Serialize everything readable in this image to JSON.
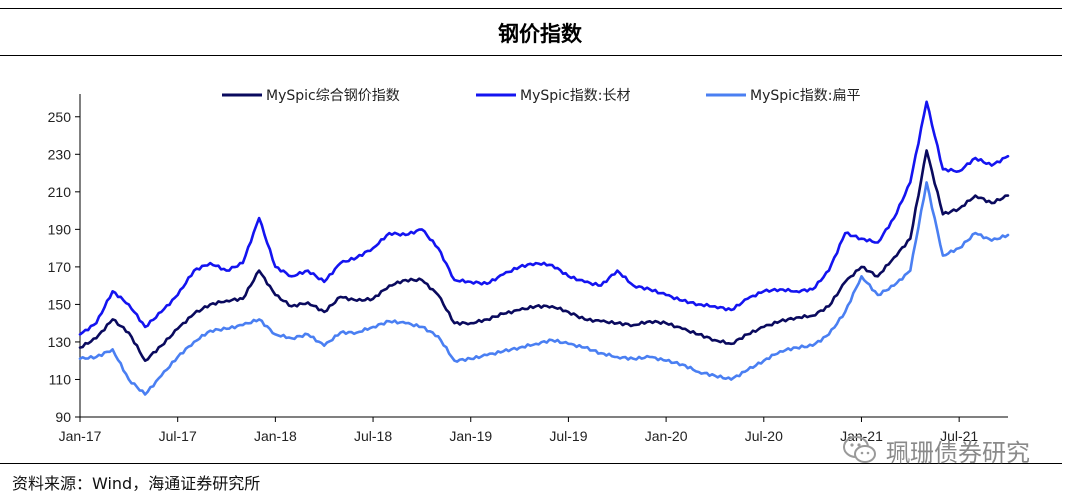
{
  "header": {
    "title": "钢价指数"
  },
  "footer": {
    "source": "资料来源：Wind，海通证券研究所"
  },
  "watermark": {
    "text": "珮珊债券研究",
    "icon": "wechat-icon"
  },
  "chart_data": {
    "type": "line",
    "title": "",
    "xlabel": "",
    "ylabel": "",
    "ylim": [
      90,
      260
    ],
    "yticks": [
      90,
      110,
      130,
      150,
      170,
      190,
      210,
      230,
      250
    ],
    "xticks": [
      "Jan-17",
      "Jul-17",
      "Jan-18",
      "Jul-18",
      "Jan-19",
      "Jul-19",
      "Jan-20",
      "Jul-20",
      "Jan-21",
      "Jul-21"
    ],
    "xlim": [
      "2017-01",
      "2021-10"
    ],
    "legend_position": "top",
    "grid": false,
    "series": [
      {
        "name": "MySpic综合钢价指数",
        "color": "#0a0a5e",
        "points": [
          [
            "2017-01",
            127
          ],
          [
            "2017-02",
            132
          ],
          [
            "2017-03",
            142
          ],
          [
            "2017-04",
            135
          ],
          [
            "2017-05",
            120
          ],
          [
            "2017-06",
            128
          ],
          [
            "2017-07",
            137
          ],
          [
            "2017-08",
            145
          ],
          [
            "2017-09",
            150
          ],
          [
            "2017-10",
            152
          ],
          [
            "2017-11",
            153
          ],
          [
            "2017-12",
            168
          ],
          [
            "2018-01",
            155
          ],
          [
            "2018-02",
            149
          ],
          [
            "2018-03",
            151
          ],
          [
            "2018-04",
            146
          ],
          [
            "2018-05",
            154
          ],
          [
            "2018-06",
            152
          ],
          [
            "2018-07",
            153
          ],
          [
            "2018-08",
            160
          ],
          [
            "2018-09",
            163
          ],
          [
            "2018-10",
            163
          ],
          [
            "2018-11",
            155
          ],
          [
            "2018-12",
            140
          ],
          [
            "2019-01",
            140
          ],
          [
            "2019-02",
            142
          ],
          [
            "2019-03",
            145
          ],
          [
            "2019-04",
            147
          ],
          [
            "2019-05",
            149
          ],
          [
            "2019-06",
            149
          ],
          [
            "2019-07",
            146
          ],
          [
            "2019-08",
            142
          ],
          [
            "2019-09",
            141
          ],
          [
            "2019-10",
            140
          ],
          [
            "2019-11",
            139
          ],
          [
            "2019-12",
            141
          ],
          [
            "2020-01",
            140
          ],
          [
            "2020-02",
            137
          ],
          [
            "2020-03",
            134
          ],
          [
            "2020-04",
            131
          ],
          [
            "2020-05",
            129
          ],
          [
            "2020-06",
            134
          ],
          [
            "2020-07",
            138
          ],
          [
            "2020-08",
            141
          ],
          [
            "2020-09",
            143
          ],
          [
            "2020-10",
            144
          ],
          [
            "2020-11",
            149
          ],
          [
            "2020-12",
            162
          ],
          [
            "2021-01",
            170
          ],
          [
            "2021-02",
            165
          ],
          [
            "2021-03",
            175
          ],
          [
            "2021-04",
            185
          ],
          [
            "2021-05",
            232
          ],
          [
            "2021-06",
            198
          ],
          [
            "2021-07",
            201
          ],
          [
            "2021-08",
            208
          ],
          [
            "2021-09",
            204
          ],
          [
            "2021-10",
            208
          ]
        ]
      },
      {
        "name": "MySpic指数:长材",
        "color": "#1414f0",
        "points": [
          [
            "2017-01",
            134
          ],
          [
            "2017-02",
            140
          ],
          [
            "2017-03",
            157
          ],
          [
            "2017-04",
            150
          ],
          [
            "2017-05",
            138
          ],
          [
            "2017-06",
            146
          ],
          [
            "2017-07",
            155
          ],
          [
            "2017-08",
            168
          ],
          [
            "2017-09",
            172
          ],
          [
            "2017-10",
            168
          ],
          [
            "2017-11",
            172
          ],
          [
            "2017-12",
            196
          ],
          [
            "2018-01",
            170
          ],
          [
            "2018-02",
            165
          ],
          [
            "2018-03",
            168
          ],
          [
            "2018-04",
            162
          ],
          [
            "2018-05",
            172
          ],
          [
            "2018-06",
            175
          ],
          [
            "2018-07",
            180
          ],
          [
            "2018-08",
            188
          ],
          [
            "2018-09",
            187
          ],
          [
            "2018-10",
            190
          ],
          [
            "2018-11",
            180
          ],
          [
            "2018-12",
            163
          ],
          [
            "2019-01",
            162
          ],
          [
            "2019-02",
            161
          ],
          [
            "2019-03",
            166
          ],
          [
            "2019-04",
            170
          ],
          [
            "2019-05",
            172
          ],
          [
            "2019-06",
            171
          ],
          [
            "2019-07",
            165
          ],
          [
            "2019-08",
            162
          ],
          [
            "2019-09",
            160
          ],
          [
            "2019-10",
            168
          ],
          [
            "2019-11",
            160
          ],
          [
            "2019-12",
            158
          ],
          [
            "2020-01",
            155
          ],
          [
            "2020-02",
            152
          ],
          [
            "2020-03",
            150
          ],
          [
            "2020-04",
            149
          ],
          [
            "2020-05",
            147
          ],
          [
            "2020-06",
            153
          ],
          [
            "2020-07",
            157
          ],
          [
            "2020-08",
            158
          ],
          [
            "2020-09",
            157
          ],
          [
            "2020-10",
            158
          ],
          [
            "2020-11",
            168
          ],
          [
            "2020-12",
            188
          ],
          [
            "2021-01",
            185
          ],
          [
            "2021-02",
            183
          ],
          [
            "2021-03",
            196
          ],
          [
            "2021-04",
            215
          ],
          [
            "2021-05",
            258
          ],
          [
            "2021-06",
            222
          ],
          [
            "2021-07",
            221
          ],
          [
            "2021-08",
            228
          ],
          [
            "2021-09",
            224
          ],
          [
            "2021-10",
            229
          ]
        ]
      },
      {
        "name": "MySpic指数:扁平",
        "color": "#4a7ff2",
        "points": [
          [
            "2017-01",
            121
          ],
          [
            "2017-02",
            122
          ],
          [
            "2017-03",
            126
          ],
          [
            "2017-04",
            110
          ],
          [
            "2017-05",
            102
          ],
          [
            "2017-06",
            112
          ],
          [
            "2017-07",
            122
          ],
          [
            "2017-08",
            130
          ],
          [
            "2017-09",
            136
          ],
          [
            "2017-10",
            137
          ],
          [
            "2017-11",
            139
          ],
          [
            "2017-12",
            142
          ],
          [
            "2018-01",
            134
          ],
          [
            "2018-02",
            132
          ],
          [
            "2018-03",
            134
          ],
          [
            "2018-04",
            128
          ],
          [
            "2018-05",
            135
          ],
          [
            "2018-06",
            135
          ],
          [
            "2018-07",
            138
          ],
          [
            "2018-08",
            141
          ],
          [
            "2018-09",
            140
          ],
          [
            "2018-10",
            138
          ],
          [
            "2018-11",
            133
          ],
          [
            "2018-12",
            120
          ],
          [
            "2019-01",
            121
          ],
          [
            "2019-02",
            123
          ],
          [
            "2019-03",
            125
          ],
          [
            "2019-04",
            127
          ],
          [
            "2019-05",
            129
          ],
          [
            "2019-06",
            131
          ],
          [
            "2019-07",
            129
          ],
          [
            "2019-08",
            127
          ],
          [
            "2019-09",
            124
          ],
          [
            "2019-10",
            122
          ],
          [
            "2019-11",
            121
          ],
          [
            "2019-12",
            122
          ],
          [
            "2020-01",
            120
          ],
          [
            "2020-02",
            118
          ],
          [
            "2020-03",
            114
          ],
          [
            "2020-04",
            112
          ],
          [
            "2020-05",
            110
          ],
          [
            "2020-06",
            115
          ],
          [
            "2020-07",
            120
          ],
          [
            "2020-08",
            125
          ],
          [
            "2020-09",
            127
          ],
          [
            "2020-10",
            128
          ],
          [
            "2020-11",
            134
          ],
          [
            "2020-12",
            146
          ],
          [
            "2021-01",
            165
          ],
          [
            "2021-02",
            155
          ],
          [
            "2021-03",
            160
          ],
          [
            "2021-04",
            168
          ],
          [
            "2021-05",
            215
          ],
          [
            "2021-06",
            176
          ],
          [
            "2021-07",
            180
          ],
          [
            "2021-08",
            188
          ],
          [
            "2021-09",
            184
          ],
          [
            "2021-10",
            187
          ]
        ]
      }
    ]
  }
}
